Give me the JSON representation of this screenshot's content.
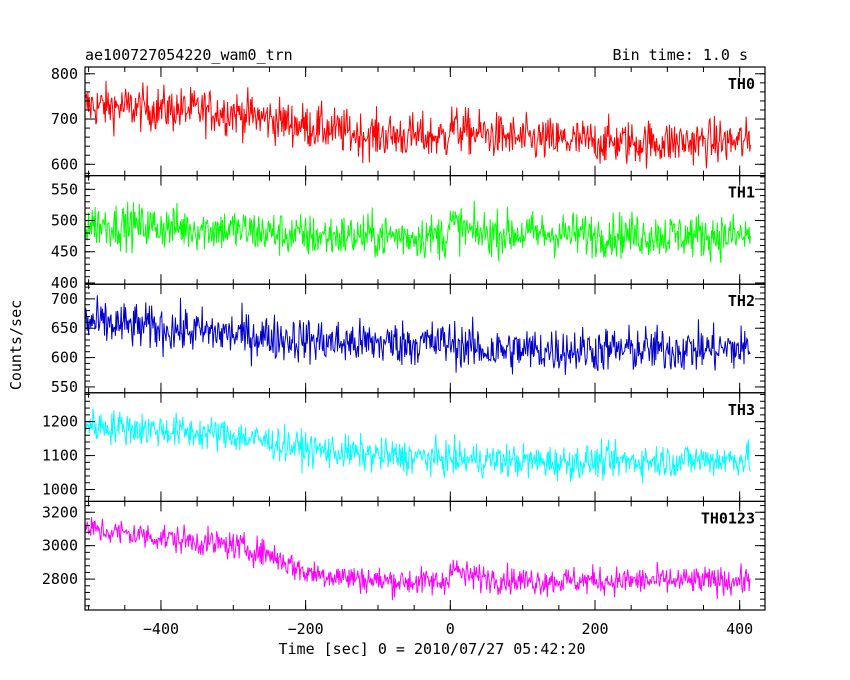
{
  "header": {
    "title": "ae100727054220_wam0_trn",
    "bin_time": "Bin time: 1.0 s"
  },
  "chart_data": {
    "type": "line",
    "xlabel": "Time [sec] 0 = 2010/07/27 05:42:20",
    "ylabel": "Counts/sec",
    "xlim": [
      -505,
      435
    ],
    "xticks": [
      -400,
      -200,
      0,
      200,
      400
    ],
    "x_range": [
      -505,
      415
    ],
    "grid": false,
    "panels": [
      {
        "name": "TH0",
        "color": "#ff0000",
        "ylim": [
          575,
          815
        ],
        "yticks": [
          600,
          700,
          800
        ],
        "trend": [
          [
            -505,
            730
          ],
          [
            -300,
            715
          ],
          [
            -200,
            685
          ],
          [
            -120,
            665
          ],
          [
            -5,
            660
          ],
          [
            0,
            690
          ],
          [
            10,
            675
          ],
          [
            100,
            655
          ],
          [
            250,
            648
          ],
          [
            415,
            650
          ]
        ],
        "noise": 45
      },
      {
        "name": "TH1",
        "color": "#00ff00",
        "ylim": [
          398,
          572
        ],
        "yticks": [
          400,
          450,
          500,
          550
        ],
        "trend": [
          [
            -505,
            495
          ],
          [
            -300,
            485
          ],
          [
            -200,
            475
          ],
          [
            -5,
            475
          ],
          [
            0,
            495
          ],
          [
            30,
            480
          ],
          [
            415,
            475
          ]
        ],
        "noise": 32
      },
      {
        "name": "TH2",
        "color": "#0000cc",
        "ylim": [
          540,
          725
        ],
        "yticks": [
          550,
          600,
          650,
          700
        ],
        "trend": [
          [
            -505,
            660
          ],
          [
            -300,
            640
          ],
          [
            -150,
            625
          ],
          [
            0,
            625
          ],
          [
            50,
            612
          ],
          [
            415,
            615
          ]
        ],
        "noise": 35
      },
      {
        "name": "TH3",
        "color": "#00ffff",
        "ylim": [
          965,
          1285
        ],
        "yticks": [
          1000,
          1100,
          1200
        ],
        "trend": [
          [
            -505,
            1190
          ],
          [
            -300,
            1160
          ],
          [
            -200,
            1120
          ],
          [
            -100,
            1100
          ],
          [
            0,
            1090
          ],
          [
            150,
            1080
          ],
          [
            415,
            1090
          ]
        ],
        "noise": 45
      },
      {
        "name": "TH0123",
        "color": "#ff00ff",
        "ylim": [
          2615,
          3265
        ],
        "yticks": [
          2800,
          3000,
          3200
        ],
        "trend": [
          [
            -505,
            3100
          ],
          [
            -300,
            3000
          ],
          [
            -250,
            2950
          ],
          [
            -200,
            2840
          ],
          [
            -100,
            2790
          ],
          [
            -5,
            2780
          ],
          [
            0,
            2880
          ],
          [
            20,
            2820
          ],
          [
            100,
            2790
          ],
          [
            415,
            2790
          ]
        ],
        "noise": 75
      }
    ]
  }
}
